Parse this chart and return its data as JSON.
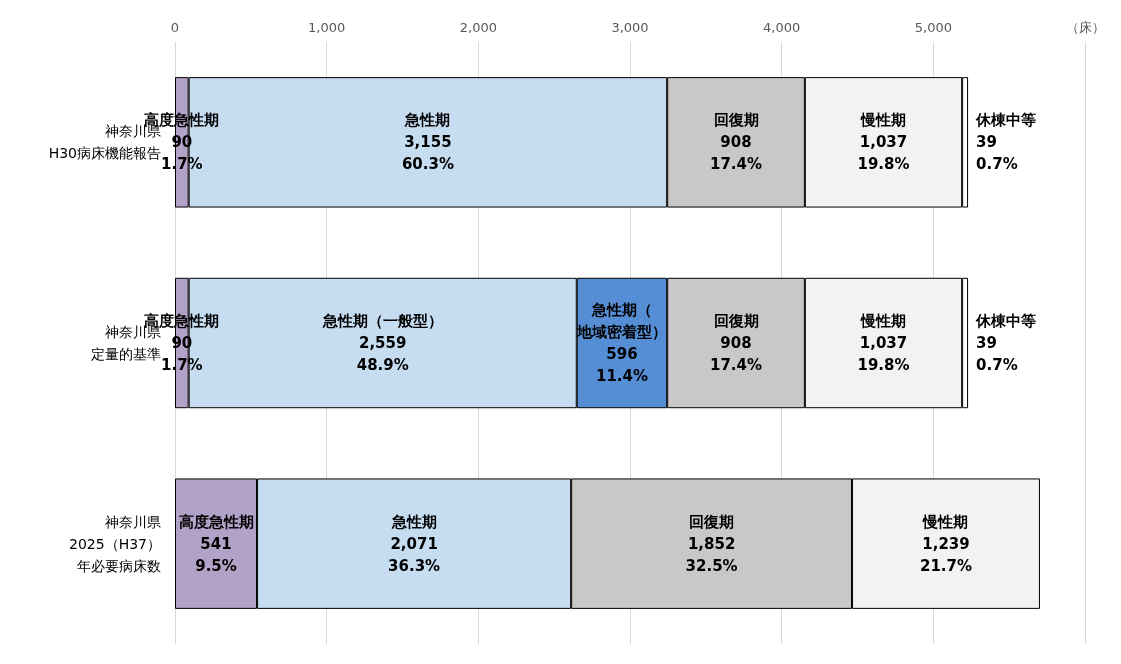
{
  "chart_data": {
    "type": "bar",
    "orientation": "horizontal",
    "stacked": true,
    "grid": "x",
    "categories": [
      "神奈川県\nH30病床機能報告",
      "神奈川県定量的基準",
      "神奈川県\n2025（H37）年必要病床数"
    ],
    "xlim": [
      0,
      6000
    ],
    "xticks": [
      {
        "value": 0,
        "label": "0"
      },
      {
        "value": 1000,
        "label": "1,000"
      },
      {
        "value": 2000,
        "label": "2,000"
      },
      {
        "value": 3000,
        "label": "3,000"
      },
      {
        "value": 4000,
        "label": "4,000"
      },
      {
        "value": 5000,
        "label": "5,000"
      },
      {
        "value": 6000,
        "label": "（床）"
      }
    ],
    "series": [
      {
        "color": "#b3a2c7",
        "values": [
          90,
          90,
          541
        ],
        "value_labels": [
          "高度急性期\n90\n1.7%",
          "高度急性期\n90\n1.7%",
          "高度急性期\n541\n9.5%"
        ]
      },
      {
        "color": "#c6dcf1",
        "values": [
          3155,
          2559,
          2071
        ],
        "value_labels": [
          "急性期\n3,155\n60.3%",
          "急性期（一般型）\n2,559\n48.9%",
          "急性期\n2,071\n36.3%"
        ]
      },
      {
        "color": "#558ed5",
        "values": [
          null,
          596,
          null
        ],
        "value_labels": [
          null,
          "急性期（地域密着型）\n596\n11.4%",
          null
        ]
      },
      {
        "color": "#c8c8c8",
        "values": [
          908,
          908,
          1852
        ],
        "value_labels": [
          "回復期\n908\n17.4%",
          "回復期\n908\n17.4%",
          "回復期\n1,852\n32.5%"
        ]
      },
      {
        "color": "#f2f2f2",
        "values": [
          1037,
          1037,
          1239
        ],
        "value_labels": [
          "慢性期\n1,037\n19.8%",
          "慢性期\n1,037\n19.8%",
          "慢性期\n1,239\n21.7%"
        ]
      },
      {
        "color": "#ffffff",
        "values": [
          39,
          39,
          null
        ],
        "value_labels": [
          "休棟中等\n39\n0.7%",
          "休棟中等\n39\n0.7%",
          null
        ]
      }
    ]
  }
}
